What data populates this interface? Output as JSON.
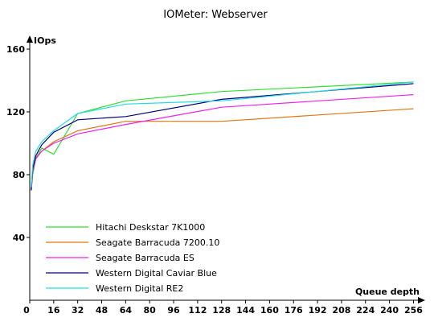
{
  "chart_data": {
    "type": "line",
    "title": "IOMeter: Webserver",
    "xlabel": "Queue depth",
    "ylabel": "IOps",
    "xlim": [
      0,
      264
    ],
    "ylim": [
      0,
      160
    ],
    "x_ticks": [
      0,
      16,
      32,
      48,
      64,
      80,
      96,
      112,
      128,
      144,
      160,
      176,
      192,
      208,
      224,
      240,
      256
    ],
    "y_ticks": [
      40,
      80,
      120,
      160
    ],
    "grid": false,
    "legend_position": "bottom-left",
    "series": [
      {
        "name": "Hitachi Deskstar 7K1000",
        "color": "#33dd33",
        "x": [
          1,
          2,
          4,
          8,
          16,
          32,
          64,
          128,
          256
        ],
        "y": [
          71,
          80,
          90,
          97,
          93,
          119,
          127,
          133,
          139
        ]
      },
      {
        "name": "Seagate Barracuda 7200.10",
        "color": "#dd7711",
        "x": [
          1,
          2,
          4,
          8,
          16,
          32,
          64,
          128,
          256
        ],
        "y": [
          72,
          83,
          91,
          95,
          101,
          108,
          114,
          114,
          122
        ]
      },
      {
        "name": "Seagate Barracuda ES",
        "color": "#ee22ee",
        "x": [
          1,
          2,
          4,
          8,
          16,
          32,
          64,
          128,
          256
        ],
        "y": [
          70,
          82,
          90,
          95,
          100,
          106,
          112,
          123,
          131
        ]
      },
      {
        "name": "Western Digital Caviar Blue",
        "color": "#000080",
        "x": [
          1,
          2,
          4,
          8,
          16,
          32,
          64,
          128,
          256
        ],
        "y": [
          70,
          84,
          92,
          99,
          107,
          115,
          117,
          128,
          138
        ]
      },
      {
        "name": "Western Digital RE2",
        "color": "#22dddd",
        "x": [
          1,
          2,
          4,
          8,
          16,
          32,
          64,
          128,
          256
        ],
        "y": [
          72,
          86,
          95,
          101,
          108,
          119,
          125,
          127,
          139
        ]
      }
    ]
  }
}
